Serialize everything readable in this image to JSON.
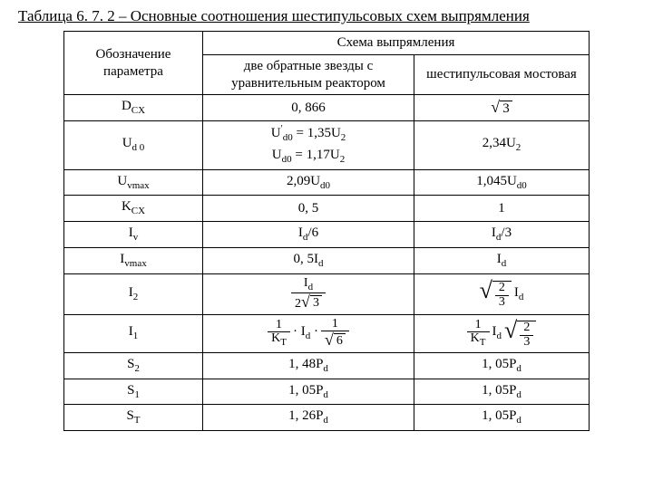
{
  "title": "Таблица 6. 7. 2 – Основные соотношения шестипульсовых схем выпрямления",
  "header": {
    "param": "Обозначение параметра",
    "scheme": "Схема выпрямления",
    "colA": "две обратные звезды с уравнительным реактором",
    "colB": "шестипульсовая мостовая"
  },
  "rows": {
    "dcx": {
      "p": "D",
      "psub": "CX",
      "a": "0, 866"
    },
    "ud0": {
      "p": "U",
      "psub": "d 0"
    },
    "uvmax": {
      "p": "U",
      "psub": "vmax"
    },
    "kcx": {
      "p": "K",
      "psub": "CX",
      "a": "0, 5",
      "b": "1"
    },
    "iv": {
      "p": "I",
      "psub": "v"
    },
    "ivmax": {
      "p": "I",
      "psub": "vmax"
    },
    "i2": {
      "p": "I",
      "psub": "2"
    },
    "i1": {
      "p": "I",
      "psub": "1"
    },
    "s2": {
      "p": "S",
      "psub": "2",
      "a": "1, 48P",
      "asub": "d",
      "b": "1, 05P",
      "bsub": "d"
    },
    "s1": {
      "p": "S",
      "psub": "1",
      "a": "1, 05P",
      "asub": "d",
      "b": "1, 05P",
      "bsub": "d"
    },
    "st": {
      "p": "S",
      "psub": "T",
      "a": "1, 26P",
      "asub": "d",
      "b": "1, 05P",
      "bsub": "d"
    }
  },
  "formulas": {
    "dcx_b": {
      "root": "3"
    },
    "ud0_a1": "U′d0 = 1,35U2",
    "ud0_a2": "Ud0 = 1,17U2",
    "ud0_b": "2,34U2",
    "uvmax_a": "2,09Ud0",
    "uvmax_b": "1,045Ud0",
    "iv_a": "Id/6",
    "iv_b": "Id/3",
    "ivmax_a": "0, 5Id",
    "ivmax_b": "Id",
    "i2_a": {
      "num": "Id",
      "den_pre": "2",
      "den_root": "3"
    },
    "i2_b": {
      "root_num": "2",
      "root_den": "3",
      "tail": "Id"
    },
    "i1_a": {
      "f1_num": "1",
      "f1_den": "KT",
      "mid": "Id",
      "f2_num": "1",
      "f2_den_root": "6"
    },
    "i1_b": {
      "f1_num": "1",
      "f1_den": "KT",
      "mid": "Id",
      "root_num": "2",
      "root_den": "3"
    }
  },
  "style": {
    "text_color": "#000000",
    "bg_color": "#ffffff",
    "border_color": "#000000",
    "font": "Times New Roman",
    "title_fontsize": 17,
    "cell_fontsize": 15
  }
}
